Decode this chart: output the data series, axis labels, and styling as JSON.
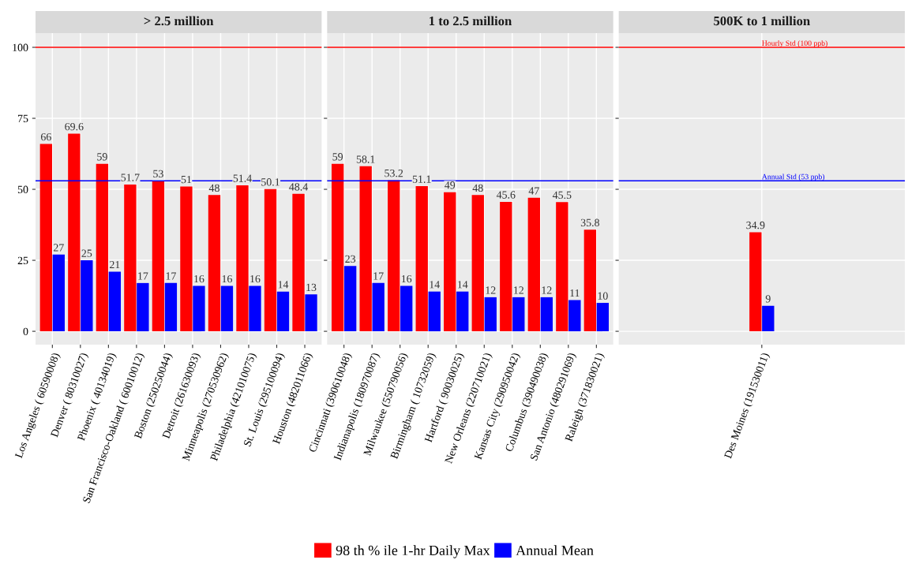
{
  "chart_data": [
    {
      "type": "bar",
      "title": "> 2.5 million",
      "categories": [
        "Los Angeles ( 60590008)",
        "Denver ( 80310027)",
        "Phoenix ( 40134019)",
        "San Francisco-Oakland ( 60010012)",
        "Boston (250250044)",
        "Detroit (261630093)",
        "Minneapolis (270530962)",
        "Philadelphia (421010075)",
        "St. Louis (295100094)",
        "Houston (482011066)"
      ],
      "series": [
        {
          "name": "98 th % ile 1-hr Daily Max",
          "color": "#ff0000",
          "values": [
            66,
            69.6,
            59,
            51.7,
            53,
            51,
            48,
            51.4,
            50.1,
            48.4
          ]
        },
        {
          "name": "Annual Mean",
          "color": "#0000ff",
          "values": [
            27,
            25,
            21,
            17,
            17,
            16,
            16,
            16,
            14,
            13
          ]
        }
      ],
      "ylim": [
        -4.7,
        105
      ],
      "yticks": [
        0,
        25,
        50,
        75,
        100
      ],
      "grid": true,
      "data_labels": true,
      "legend": "bottom",
      "ref_lines": [
        {
          "axis": "y",
          "value": 100,
          "color": "#ff0000"
        },
        {
          "axis": "y",
          "value": 53,
          "color": "#0000ff"
        }
      ]
    },
    {
      "type": "bar",
      "title": "1 to 2.5 million",
      "categories": [
        "Cincinnati (390610048)",
        "Indianapolis (180970087)",
        "Milwaukee (550790056)",
        "Birmingham ( 10732059)",
        "Hartford ( 90030025)",
        "New Orleans (220710021)",
        "Kansas City (290950042)",
        "Columbus (390490038)",
        "San Antonio (480291069)",
        "Raleigh (371830021)"
      ],
      "series": [
        {
          "name": "98 th % ile 1-hr Daily Max",
          "color": "#ff0000",
          "values": [
            59,
            58.1,
            53.2,
            51.1,
            49,
            48,
            45.6,
            47,
            45.5,
            35.8
          ]
        },
        {
          "name": "Annual Mean",
          "color": "#0000ff",
          "values": [
            23,
            17,
            16,
            14,
            14,
            12,
            12,
            12,
            11,
            10
          ]
        }
      ],
      "ylim": [
        -4.7,
        105
      ],
      "yticks": [
        0,
        25,
        50,
        75,
        100
      ],
      "grid": true,
      "data_labels": true,
      "tick_labels": "x",
      "ref_lines": [
        {
          "axis": "y",
          "value": 100,
          "color": "#ff0000"
        },
        {
          "axis": "y",
          "value": 53,
          "color": "#0000ff"
        }
      ]
    },
    {
      "type": "bar",
      "title": "500K to 1 million",
      "categories": [
        "Des Moines (191530011)"
      ],
      "series": [
        {
          "name": "98 th % ile 1-hr Daily Max",
          "color": "#ff0000",
          "values": [
            34.9
          ]
        },
        {
          "name": "Annual Mean",
          "color": "#0000ff",
          "values": [
            9
          ]
        }
      ],
      "ylim": [
        -4.7,
        105
      ],
      "yticks": [
        0,
        25,
        50,
        75,
        100
      ],
      "grid": true,
      "data_labels": true,
      "tick_labels": "x",
      "ref_lines": [
        {
          "axis": "y",
          "value": 100,
          "color": "#ff0000",
          "label": "Hourly Std (100 ppb)"
        },
        {
          "axis": "y",
          "value": 53,
          "color": "#0000ff",
          "label": "Annual Std (53 ppb)"
        }
      ]
    }
  ]
}
